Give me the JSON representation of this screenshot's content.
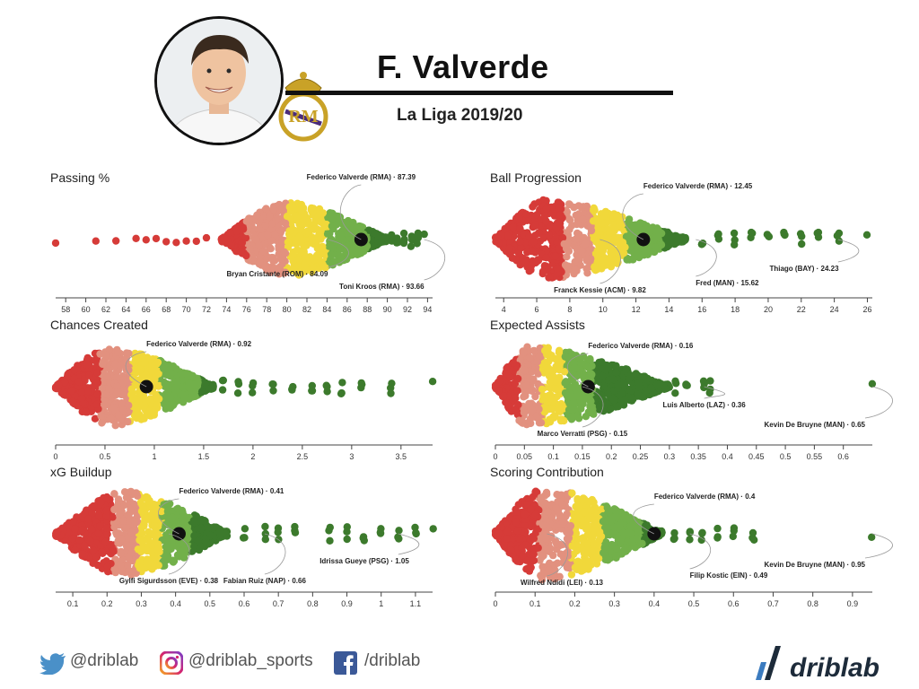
{
  "header": {
    "player_name": "F. Valverde",
    "league": "La Liga 2019/20",
    "avatar_icon": "player-portrait",
    "badge_icon": "real-madrid-crest"
  },
  "colors": {
    "red": "#d63b38",
    "salmon": "#e2917f",
    "yellow": "#f1d83a",
    "lightgreen": "#72b04a",
    "darkgreen": "#3c7a2c",
    "highlight": "#111111"
  },
  "chart_data": [
    {
      "id": "passing",
      "type": "scatter",
      "title": "Passing %",
      "xlim": [
        57,
        94.5
      ],
      "ticks": [
        58,
        60,
        62,
        64,
        66,
        68,
        70,
        72,
        74,
        76,
        78,
        80,
        82,
        84,
        86,
        88,
        90,
        92,
        94
      ],
      "bins": [
        76,
        80,
        84,
        88
      ],
      "highlight": {
        "label": "Federico Valverde (RMA) · 87.39",
        "value": 87.39
      },
      "annotations": [
        {
          "label": "Federico Valverde (RMA) · 87.39",
          "value": 87.39
        },
        {
          "label": "Bryan Cristante (ROM) · 84.09",
          "value": 84.09
        },
        {
          "label": "Toni Kroos (RMA) · 93.66",
          "value": 93.66
        }
      ]
    },
    {
      "id": "progression",
      "type": "scatter",
      "title": "Ball Progression",
      "xlim": [
        3.5,
        26.3
      ],
      "ticks": [
        4,
        6,
        8,
        10,
        12,
        14,
        16,
        18,
        20,
        22,
        24,
        26
      ],
      "bins": [
        7.6,
        9.4,
        11.4,
        13.6
      ],
      "highlight": {
        "label": "Federico Valverde (RMA) · 12.45",
        "value": 12.45
      },
      "annotations": [
        {
          "label": "Federico Valverde (RMA) · 12.45",
          "value": 12.45
        },
        {
          "label": "Franck Kessie (ACM) · 9.82",
          "value": 9.82
        },
        {
          "label": "Fred (MAN) · 15.62",
          "value": 15.62
        },
        {
          "label": "Thiago (BAY) · 24.23",
          "value": 24.23
        }
      ]
    },
    {
      "id": "chances",
      "type": "scatter",
      "title": "Chances Created",
      "xlim": [
        0,
        3.82
      ],
      "ticks": [
        0,
        0.5,
        1,
        1.5,
        2,
        2.5,
        3,
        3.5
      ],
      "bins": [
        0.45,
        0.75,
        1.05,
        1.45
      ],
      "highlight": {
        "label": "Federico Valverde (RMA) · 0.92",
        "value": 0.92
      },
      "annotations": [
        {
          "label": "Federico Valverde (RMA) · 0.92",
          "value": 0.92
        }
      ]
    },
    {
      "id": "assists",
      "type": "scatter",
      "title": "Expected Assists",
      "xlim": [
        0,
        0.65
      ],
      "ticks": [
        0,
        0.05,
        0.1,
        0.15,
        0.2,
        0.25,
        0.3,
        0.35,
        0.4,
        0.45,
        0.5,
        0.55,
        0.6
      ],
      "bins": [
        0.04,
        0.08,
        0.12,
        0.17
      ],
      "highlight": {
        "label": "Federico Valverde (RMA) · 0.16",
        "value": 0.16
      },
      "annotations": [
        {
          "label": "Federico Valverde (RMA) · 0.16",
          "value": 0.16
        },
        {
          "label": "Marco Verratti (PSG) · 0.15",
          "value": 0.15
        },
        {
          "label": "Luis Alberto (LAZ) · 0.36",
          "value": 0.36
        },
        {
          "label": "Kevin De Bruyne (MAN) · 0.65",
          "value": 0.65
        }
      ]
    },
    {
      "id": "buildup",
      "type": "scatter",
      "title": "xG Buildup",
      "xlim": [
        0.05,
        1.15
      ],
      "ticks": [
        0.1,
        0.2,
        0.3,
        0.4,
        0.5,
        0.6,
        0.7,
        0.8,
        0.9,
        1,
        1.1
      ],
      "bins": [
        0.22,
        0.29,
        0.36,
        0.44
      ],
      "highlight": {
        "label": "Federico Valverde (RMA) · 0.41",
        "value": 0.41
      },
      "annotations": [
        {
          "label": "Federico Valverde (RMA) · 0.41",
          "value": 0.41
        },
        {
          "label": "Gylfi Sigurdsson (EVE) · 0.38",
          "value": 0.38
        },
        {
          "label": "Fabian Ruiz (NAP) · 0.66",
          "value": 0.66
        },
        {
          "label": "Idrissa Gueye (PSG) · 1.05",
          "value": 1.05
        }
      ]
    },
    {
      "id": "scoring",
      "type": "scatter",
      "title": "Scoring Contribution",
      "xlim": [
        0,
        0.95
      ],
      "ticks": [
        0,
        0.1,
        0.2,
        0.3,
        0.4,
        0.5,
        0.6,
        0.7,
        0.8,
        0.9
      ],
      "bins": [
        0.11,
        0.19,
        0.27,
        0.37
      ],
      "highlight": {
        "label": "Federico Valverde (RMA) · 0.4",
        "value": 0.4
      },
      "annotations": [
        {
          "label": "Federico Valverde (RMA) · 0.4",
          "value": 0.4
        },
        {
          "label": "Wilfred Ndidi (LEI) · 0.13",
          "value": 0.13
        },
        {
          "label": "Filip Kostic (EIN) · 0.49",
          "value": 0.49
        },
        {
          "label": "Kevin De Bruyne (MAN) · 0.95",
          "value": 0.95
        }
      ]
    }
  ],
  "footer": {
    "twitter": "@driblab",
    "instagram": "@driblab_sports",
    "facebook": "/driblab",
    "brand": "driblab",
    "twitter_icon": "twitter-icon",
    "instagram_icon": "instagram-icon",
    "facebook_icon": "facebook-icon",
    "brand_icon": "driblab-logo"
  }
}
